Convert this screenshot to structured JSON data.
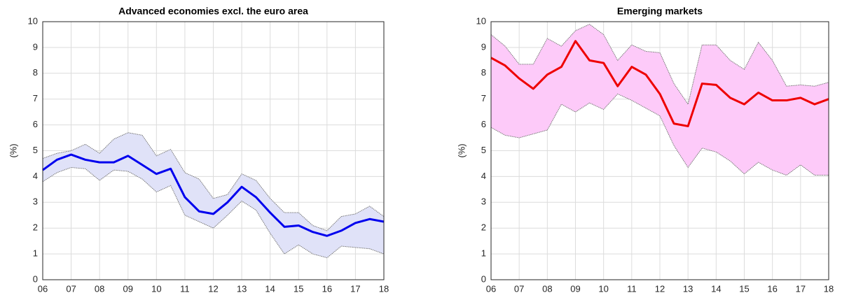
{
  "chart_data": [
    {
      "type": "line",
      "title": "Advanced economies excl. the euro area",
      "y_label": "(%)",
      "x": [
        6,
        6.5,
        7,
        7.5,
        8,
        8.5,
        9,
        9.5,
        10,
        10.5,
        11,
        11.5,
        12,
        12.5,
        13,
        13.5,
        14,
        14.5,
        15,
        15.5,
        16,
        16.5,
        17,
        17.5,
        18
      ],
      "series": [
        {
          "color": "#0000ee",
          "values": [
            4.25,
            4.65,
            4.85,
            4.65,
            4.55,
            4.55,
            4.8,
            4.45,
            4.1,
            4.3,
            3.2,
            2.65,
            2.55,
            3.0,
            3.6,
            3.2,
            2.6,
            2.05,
            2.1,
            1.85,
            1.7,
            1.9,
            2.2,
            2.35,
            2.25
          ]
        }
      ],
      "band": {
        "color": "#e0e2f8",
        "upper": [
          4.7,
          4.9,
          5.0,
          5.25,
          4.9,
          5.45,
          5.7,
          5.6,
          4.8,
          5.05,
          4.15,
          3.9,
          3.15,
          3.3,
          4.1,
          3.85,
          3.15,
          2.6,
          2.6,
          2.1,
          1.9,
          2.45,
          2.55,
          2.85,
          2.45
        ],
        "lower": [
          3.8,
          4.15,
          4.35,
          4.3,
          3.85,
          4.25,
          4.2,
          3.9,
          3.4,
          3.65,
          2.5,
          2.25,
          2.0,
          2.5,
          3.05,
          2.7,
          1.8,
          1.0,
          1.35,
          1.0,
          0.85,
          1.3,
          1.25,
          1.2,
          1.0
        ]
      },
      "xlim": [
        6,
        18
      ],
      "xticks": [
        {
          "value": 6,
          "label": "06"
        },
        {
          "value": 7,
          "label": "07"
        },
        {
          "value": 8,
          "label": "08"
        },
        {
          "value": 9,
          "label": "09"
        },
        10,
        11,
        12,
        13,
        14,
        15,
        16,
        17,
        18
      ],
      "ylim": [
        0,
        10
      ],
      "yticks": [
        0,
        1,
        2,
        3,
        4,
        5,
        6,
        7,
        8,
        9,
        10
      ],
      "grid": true
    },
    {
      "type": "line",
      "title": "Emerging markets",
      "y_label": "(%)",
      "x": [
        6,
        6.5,
        7,
        7.5,
        8,
        8.5,
        9,
        9.5,
        10,
        10.5,
        11,
        11.5,
        12,
        12.5,
        13,
        13.5,
        14,
        14.5,
        15,
        15.5,
        16,
        16.5,
        17,
        17.5,
        18
      ],
      "series": [
        {
          "color": "#ee0000",
          "values": [
            8.6,
            8.3,
            7.8,
            7.4,
            7.95,
            8.25,
            9.25,
            8.5,
            8.4,
            7.5,
            8.25,
            7.95,
            7.2,
            6.05,
            5.95,
            7.6,
            7.55,
            7.05,
            6.8,
            7.25,
            6.95,
            6.95,
            7.05,
            6.8,
            7.0
          ]
        }
      ],
      "band": {
        "color": "#fdcaf9",
        "upper": [
          9.5,
          9.05,
          8.35,
          8.35,
          9.35,
          9.05,
          9.65,
          9.9,
          9.5,
          8.5,
          9.1,
          8.85,
          8.8,
          7.6,
          6.8,
          9.1,
          9.1,
          8.5,
          8.15,
          9.2,
          8.5,
          7.5,
          7.55,
          7.5,
          7.65
        ],
        "lower": [
          5.9,
          5.6,
          5.5,
          5.65,
          5.8,
          6.8,
          6.5,
          6.85,
          6.6,
          7.2,
          6.95,
          6.65,
          6.35,
          5.2,
          4.35,
          5.1,
          4.95,
          4.6,
          4.1,
          4.55,
          4.25,
          4.05,
          4.45,
          4.05,
          4.05
        ]
      },
      "xlim": [
        6,
        18
      ],
      "xticks": [
        {
          "value": 6,
          "label": "06"
        },
        {
          "value": 7,
          "label": "07"
        },
        {
          "value": 8,
          "label": "08"
        },
        {
          "value": 9,
          "label": "09"
        },
        10,
        11,
        12,
        13,
        14,
        15,
        16,
        17,
        18
      ],
      "ylim": [
        0,
        10
      ],
      "yticks": [
        0,
        1,
        2,
        3,
        4,
        5,
        6,
        7,
        8,
        9,
        10
      ],
      "grid": true
    }
  ]
}
